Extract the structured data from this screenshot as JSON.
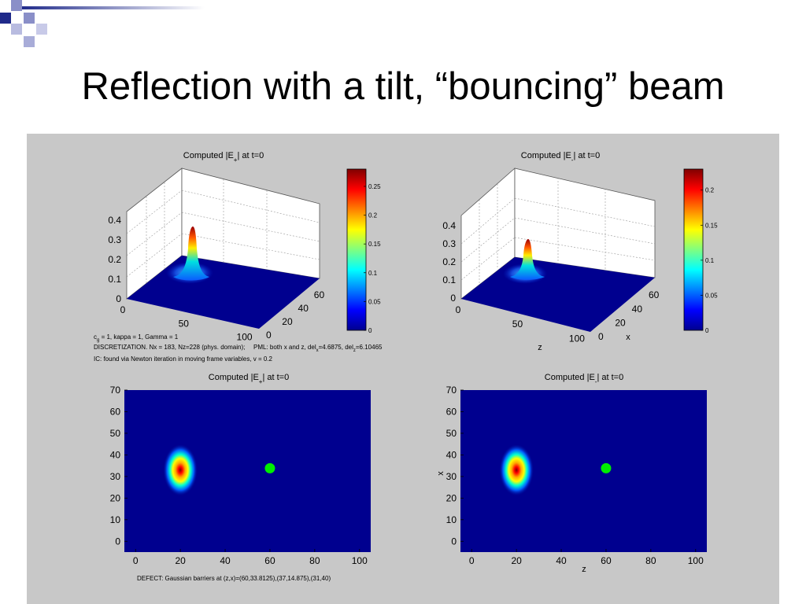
{
  "slide": {
    "title": "Reflection with a tilt, “bouncing” beam"
  },
  "colors": {
    "figure_background": "#c8c8c8",
    "field_background": "#00008f",
    "defect_marker": "#00ee00",
    "deco_blue": "#1f2a8a",
    "deco_light": "#a8acd8",
    "colormap": "jet"
  },
  "annotations": {
    "params_line_1_a": "c",
    "params_line_1_sub": "g",
    "params_line_1_b": " = 1, kappa = 1, Gamma = 1",
    "params_line_2": "DISCRETIZATION. Nx = 183, Nz=228 (phys. domain);",
    "pml_a": "PML: both x and z, del",
    "pml_sub_x": "x",
    "pml_b": "=4.6875, del",
    "pml_sub_z": "z",
    "pml_c": "=6.10465",
    "ic_line": "IC: found via Newton iteration in moving frame variables, v = 0.2",
    "defect_line": "DEFECT: Gaussian barriers at (z,x)=(60,33.8125),(37,14.875),(31,40)"
  },
  "chart_data": [
    {
      "type": "surface",
      "title_a": "Computed |E",
      "title_sub": "+",
      "title_b": "| at t=0",
      "xlabel": "",
      "ylabel": "",
      "x_ticks": [
        "0",
        "50",
        "100"
      ],
      "y_ticks": [
        "0",
        "20",
        "40",
        "60"
      ],
      "z_ticks": [
        "0",
        "0.1",
        "0.2",
        "0.3",
        "0.4"
      ],
      "zlim": [
        0,
        0.4
      ],
      "peak": {
        "z": 20,
        "x": 33,
        "value": 0.28
      },
      "colorbar_ticks": [
        "0",
        "0.05",
        "0.1",
        "0.15",
        "0.2",
        "0.25"
      ],
      "colorbar_max": 0.28
    },
    {
      "type": "surface",
      "title_a": "Computed |E",
      "title_sub": "-",
      "title_b": "| at t=0",
      "xlabel": "z",
      "ylabel": "x",
      "x_ticks": [
        "0",
        "50",
        "100"
      ],
      "y_ticks": [
        "0",
        "20",
        "40",
        "60"
      ],
      "z_ticks": [
        "0",
        "0.1",
        "0.2",
        "0.3",
        "0.4"
      ],
      "zlim": [
        0,
        0.4
      ],
      "peak": {
        "z": 20,
        "x": 33,
        "value": 0.23
      },
      "colorbar_ticks": [
        "0",
        "0.05",
        "0.1",
        "0.15",
        "0.2"
      ],
      "colorbar_max": 0.23
    },
    {
      "type": "heatmap",
      "title_a": "Computed |E",
      "title_sub": "+",
      "title_b": "| at t=0",
      "xlabel": "",
      "ylabel": "",
      "x_ticks": [
        "0",
        "20",
        "40",
        "60",
        "80",
        "100"
      ],
      "y_ticks": [
        "0",
        "10",
        "20",
        "30",
        "40",
        "50",
        "60",
        "70"
      ],
      "xlim": [
        -5,
        105
      ],
      "ylim": [
        -5,
        70
      ],
      "beam": {
        "z": 20,
        "x": 33
      },
      "defect_marker": {
        "z": 60,
        "x": 33.8125
      }
    },
    {
      "type": "heatmap",
      "title_a": "Computed |E",
      "title_sub": "-",
      "title_b": "| at t=0",
      "xlabel": "z",
      "ylabel": "x",
      "x_ticks": [
        "0",
        "20",
        "40",
        "60",
        "80",
        "100"
      ],
      "y_ticks": [
        "0",
        "10",
        "20",
        "30",
        "40",
        "50",
        "60",
        "70"
      ],
      "xlim": [
        -5,
        105
      ],
      "ylim": [
        -5,
        70
      ],
      "beam": {
        "z": 20,
        "x": 33
      },
      "defect_marker": {
        "z": 60,
        "x": 33.8125
      }
    }
  ]
}
